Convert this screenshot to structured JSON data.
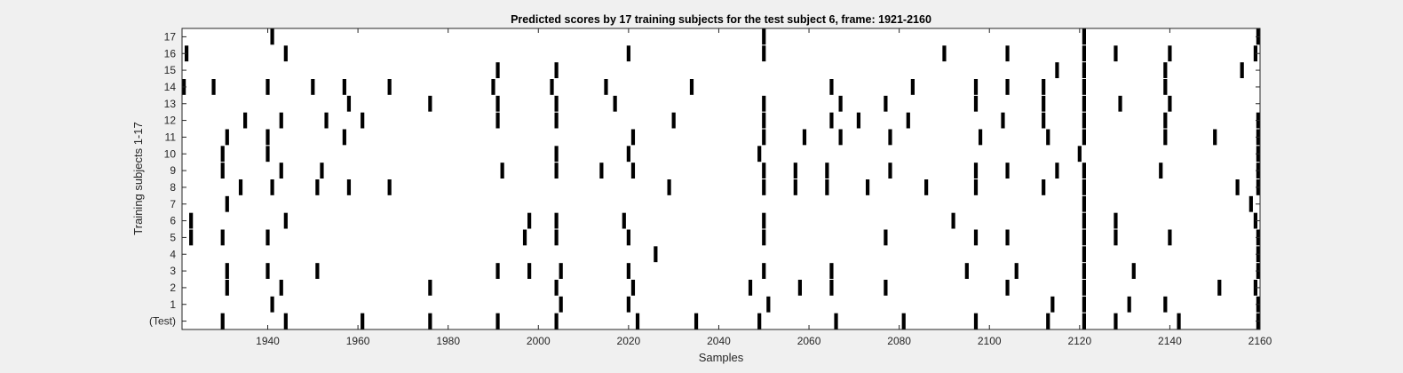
{
  "chart_data": {
    "type": "heatmap",
    "title": "Predicted scores by 17 training subjects for the test subject 6, frame: 1921-2160",
    "xlabel": "Samples",
    "ylabel": "Training subjects 1-17",
    "xlim": [
      1921,
      2160
    ],
    "xticks": [
      1940,
      1960,
      1980,
      2000,
      2020,
      2040,
      2060,
      2080,
      2100,
      2120,
      2140,
      2160
    ],
    "yticklabels": [
      "(Test)",
      "1",
      "2",
      "3",
      "4",
      "5",
      "6",
      "7",
      "8",
      "9",
      "10",
      "11",
      "12",
      "13",
      "14",
      "15",
      "16",
      "17"
    ],
    "grid": false,
    "colors": {
      "mark": "#000000",
      "background": "#ffffff"
    },
    "rows": [
      {
        "label": "(Test)",
        "x": [
          1930,
          1944,
          1961,
          1976,
          1991,
          2004,
          2022,
          2035,
          2049,
          2066,
          2081,
          2097,
          2113,
          2121,
          2128,
          2142,
          2160
        ]
      },
      {
        "label": "1",
        "x": [
          1941,
          2005,
          2020,
          2051,
          2114,
          2121,
          2131,
          2139,
          2160
        ]
      },
      {
        "label": "2",
        "x": [
          1931,
          1943,
          1976,
          2004,
          2021,
          2047,
          2058,
          2065,
          2077,
          2104,
          2121,
          2151,
          2159
        ]
      },
      {
        "label": "3",
        "x": [
          1931,
          1940,
          1951,
          1991,
          1998,
          2005,
          2020,
          2050,
          2065,
          2095,
          2106,
          2121,
          2132,
          2161
        ]
      },
      {
        "label": "4",
        "x": [
          2026,
          2121,
          2160
        ]
      },
      {
        "label": "5",
        "x": [
          1923,
          1930,
          1940,
          1997,
          2004,
          2020,
          2050,
          2077,
          2097,
          2104,
          2121,
          2128,
          2140,
          2160
        ]
      },
      {
        "label": "6",
        "x": [
          1923,
          1944,
          1998,
          2004,
          2019,
          2050,
          2092,
          2121,
          2128,
          2159
        ]
      },
      {
        "label": "7",
        "x": [
          1931,
          2121,
          2158
        ]
      },
      {
        "label": "8",
        "x": [
          1934,
          1941,
          1951,
          1958,
          1967,
          2029,
          2050,
          2057,
          2064,
          2073,
          2086,
          2097,
          2112,
          2121,
          2155,
          2160
        ]
      },
      {
        "label": "9",
        "x": [
          1930,
          1943,
          1952,
          1992,
          2004,
          2014,
          2021,
          2050,
          2057,
          2064,
          2078,
          2097,
          2104,
          2115,
          2121,
          2138,
          2160
        ]
      },
      {
        "label": "10",
        "x": [
          1930,
          1940,
          2004,
          2020,
          2049,
          2120,
          2160
        ]
      },
      {
        "label": "11",
        "x": [
          1931,
          1940,
          1957,
          2021,
          2050,
          2059,
          2067,
          2078,
          2098,
          2113,
          2121,
          2139,
          2150,
          2160
        ]
      },
      {
        "label": "12",
        "x": [
          1935,
          1943,
          1953,
          1961,
          1991,
          2004,
          2030,
          2050,
          2065,
          2071,
          2082,
          2103,
          2112,
          2121,
          2139,
          2160
        ]
      },
      {
        "label": "13",
        "x": [
          1958,
          1976,
          1991,
          2004,
          2017,
          2050,
          2067,
          2077,
          2097,
          2112,
          2121,
          2129,
          2140
        ]
      },
      {
        "label": "14",
        "x": [
          1921,
          1928,
          1940,
          1950,
          1957,
          1967,
          1990,
          2003,
          2015,
          2034,
          2065,
          2083,
          2097,
          2104,
          2112,
          2121,
          2139
        ]
      },
      {
        "label": "15",
        "x": [
          1991,
          2004,
          2115,
          2121,
          2139,
          2156
        ]
      },
      {
        "label": "16",
        "x": [
          1922,
          1944,
          2020,
          2050,
          2090,
          2104,
          2121,
          2128,
          2140,
          2159
        ]
      },
      {
        "label": "17",
        "x": [
          1941,
          2050,
          2121,
          2160
        ]
      }
    ]
  }
}
